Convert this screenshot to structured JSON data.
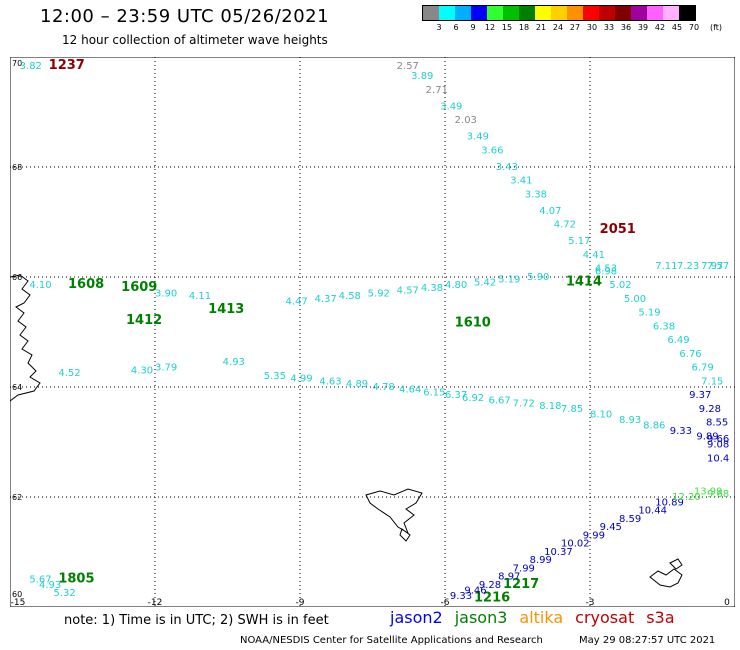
{
  "header": {
    "title": "12:00 – 23:59 UTC 05/26/2021",
    "subtitle": "12 hour collection of altimeter wave heights"
  },
  "legend": {
    "colors": [
      "#888888",
      "#00ffff",
      "#00b0ff",
      "#0000ff",
      "#30ff30",
      "#00c000",
      "#008000",
      "#ffff00",
      "#ffd000",
      "#ff9000",
      "#ff0000",
      "#c00000",
      "#800000",
      "#a000a0",
      "#ff60ff",
      "#ffb0ff",
      "#000000"
    ],
    "ticks": [
      "3",
      "6",
      "9",
      "12",
      "15",
      "18",
      "21",
      "24",
      "27",
      "30",
      "33",
      "36",
      "39",
      "42",
      "45",
      "70"
    ],
    "unit": "(ft)"
  },
  "map": {
    "lon_range": [
      -15,
      0
    ],
    "lat_range": [
      60,
      70
    ],
    "x_ticks": [
      "-15",
      "-12",
      "-9",
      "-6",
      "-3",
      "0"
    ],
    "y_ticks": [
      "60",
      "62",
      "64",
      "66",
      "68",
      "70"
    ],
    "grid": "dotted",
    "time_labels": [
      {
        "text": "1237",
        "lon": -14.2,
        "lat": 69.85,
        "color": "#8b0000"
      },
      {
        "text": "2051",
        "lon": -2.8,
        "lat": 66.8,
        "color": "#8b0000"
      },
      {
        "text": "1608",
        "lon": -13.8,
        "lat": 65.8,
        "color": "#008000"
      },
      {
        "text": "1609",
        "lon": -12.7,
        "lat": 65.75,
        "color": "#008000"
      },
      {
        "text": "1412",
        "lon": -12.6,
        "lat": 65.15,
        "color": "#008000"
      },
      {
        "text": "1413",
        "lon": -10.9,
        "lat": 65.35,
        "color": "#008000"
      },
      {
        "text": "1414",
        "lon": -3.5,
        "lat": 65.85,
        "color": "#008000"
      },
      {
        "text": "1610",
        "lon": -5.8,
        "lat": 65.1,
        "color": "#008000"
      },
      {
        "text": "1805",
        "lon": -14.0,
        "lat": 60.45,
        "color": "#008000"
      },
      {
        "text": "1217",
        "lon": -4.8,
        "lat": 60.35,
        "color": "#008000"
      },
      {
        "text": "1216",
        "lon": -5.4,
        "lat": 60.1,
        "color": "#008000"
      }
    ],
    "wave_values": [
      {
        "text": "3.82",
        "lon": -14.8,
        "lat": 69.85,
        "color": "#20d0d0"
      },
      {
        "text": "2.57",
        "lon": -7.0,
        "lat": 69.9,
        "color": "#888888"
      },
      {
        "text": "3.89",
        "lon": -6.7,
        "lat": 69.6,
        "color": "#20d0d0"
      },
      {
        "text": "2.71",
        "lon": -6.4,
        "lat": 69.35,
        "color": "#888888"
      },
      {
        "text": "3.49",
        "lon": -6.1,
        "lat": 69.05,
        "color": "#20d0d0"
      },
      {
        "text": "2.03",
        "lon": -5.8,
        "lat": 68.8,
        "color": "#888888"
      },
      {
        "text": "3.49",
        "lon": -5.55,
        "lat": 68.5,
        "color": "#20d0d0"
      },
      {
        "text": "3.66",
        "lon": -5.25,
        "lat": 68.25,
        "color": "#20d0d0"
      },
      {
        "text": "3.43",
        "lon": -4.95,
        "lat": 67.95,
        "color": "#20d0d0"
      },
      {
        "text": "3.41",
        "lon": -4.65,
        "lat": 67.7,
        "color": "#20d0d0"
      },
      {
        "text": "3.38",
        "lon": -4.35,
        "lat": 67.45,
        "color": "#20d0d0"
      },
      {
        "text": "4.07",
        "lon": -4.05,
        "lat": 67.15,
        "color": "#20d0d0"
      },
      {
        "text": "4.72",
        "lon": -3.75,
        "lat": 66.9,
        "color": "#20d0d0"
      },
      {
        "text": "5.17",
        "lon": -3.45,
        "lat": 66.6,
        "color": "#20d0d0"
      },
      {
        "text": "4.41",
        "lon": -3.15,
        "lat": 66.35,
        "color": "#20d0d0"
      },
      {
        "text": "4.53",
        "lon": -2.9,
        "lat": 66.1,
        "color": "#20d0d0"
      },
      {
        "text": "5.02",
        "lon": -2.6,
        "lat": 65.8,
        "color": "#20d0d0"
      },
      {
        "text": "5.00",
        "lon": -2.3,
        "lat": 65.55,
        "color": "#20d0d0"
      },
      {
        "text": "5.19",
        "lon": -2.0,
        "lat": 65.3,
        "color": "#20d0d0"
      },
      {
        "text": "6.38",
        "lon": -1.7,
        "lat": 65.05,
        "color": "#20d0d0"
      },
      {
        "text": "6.49",
        "lon": -1.4,
        "lat": 64.8,
        "color": "#20d0d0"
      },
      {
        "text": "6.76",
        "lon": -1.15,
        "lat": 64.55,
        "color": "#20d0d0"
      },
      {
        "text": "6.79",
        "lon": -0.9,
        "lat": 64.3,
        "color": "#20d0d0"
      },
      {
        "text": "7.15",
        "lon": -0.7,
        "lat": 64.05,
        "color": "#20d0d0"
      },
      {
        "text": "9.37",
        "lon": -0.95,
        "lat": 63.8,
        "color": "#0000c0"
      },
      {
        "text": "9.28",
        "lon": -0.75,
        "lat": 63.55,
        "color": "#0000c0"
      },
      {
        "text": "8.55",
        "lon": -0.6,
        "lat": 63.3,
        "color": "#0000c0"
      },
      {
        "text": "9.33",
        "lon": -1.35,
        "lat": 63.15,
        "color": "#0000c0"
      },
      {
        "text": "8.86",
        "lon": -1.9,
        "lat": 63.25,
        "color": "#20d0d0"
      },
      {
        "text": "8.93",
        "lon": -2.4,
        "lat": 63.35,
        "color": "#20d0d0"
      },
      {
        "text": "8.10",
        "lon": -3.0,
        "lat": 63.45,
        "color": "#20d0d0"
      },
      {
        "text": "7.85",
        "lon": -3.6,
        "lat": 63.55,
        "color": "#20d0d0"
      },
      {
        "text": "8.18",
        "lon": -4.05,
        "lat": 63.6,
        "color": "#20d0d0"
      },
      {
        "text": "7.72",
        "lon": -4.6,
        "lat": 63.65,
        "color": "#20d0d0"
      },
      {
        "text": "6.67",
        "lon": -5.1,
        "lat": 63.7,
        "color": "#20d0d0"
      },
      {
        "text": "6.92",
        "lon": -5.65,
        "lat": 63.75,
        "color": "#20d0d0"
      },
      {
        "text": "6.37",
        "lon": -6.0,
        "lat": 63.8,
        "color": "#20d0d0"
      },
      {
        "text": "6.15",
        "lon": -6.45,
        "lat": 63.85,
        "color": "#20d0d0"
      },
      {
        "text": "4.64",
        "lon": -6.95,
        "lat": 63.9,
        "color": "#20d0d0"
      },
      {
        "text": "4.78",
        "lon": -7.5,
        "lat": 63.95,
        "color": "#20d0d0"
      },
      {
        "text": "4.89",
        "lon": -8.05,
        "lat": 64.0,
        "color": "#20d0d0"
      },
      {
        "text": "4.63",
        "lon": -8.6,
        "lat": 64.05,
        "color": "#20d0d0"
      },
      {
        "text": "4.99",
        "lon": -9.2,
        "lat": 64.1,
        "color": "#20d0d0"
      },
      {
        "text": "5.35",
        "lon": -9.75,
        "lat": 64.15,
        "color": "#20d0d0"
      },
      {
        "text": "4.52",
        "lon": -14.0,
        "lat": 64.2,
        "color": "#20d0d0"
      },
      {
        "text": "4.30",
        "lon": -12.5,
        "lat": 64.25,
        "color": "#20d0d0"
      },
      {
        "text": "3.79",
        "lon": -12.0,
        "lat": 64.3,
        "color": "#20d0d0"
      },
      {
        "text": "4.93",
        "lon": -10.6,
        "lat": 64.4,
        "color": "#20d0d0"
      },
      {
        "text": "4.10",
        "lon": -14.6,
        "lat": 65.8,
        "color": "#20d0d0"
      },
      {
        "text": "3.90",
        "lon": -12.0,
        "lat": 65.65,
        "color": "#20d0d0"
      },
      {
        "text": "4.11",
        "lon": -11.3,
        "lat": 65.6,
        "color": "#20d0d0"
      },
      {
        "text": "4.47",
        "lon": -9.3,
        "lat": 65.5,
        "color": "#20d0d0"
      },
      {
        "text": "4.37",
        "lon": -8.7,
        "lat": 65.55,
        "color": "#20d0d0"
      },
      {
        "text": "4.58",
        "lon": -8.2,
        "lat": 65.6,
        "color": "#20d0d0"
      },
      {
        "text": "5.92",
        "lon": -7.6,
        "lat": 65.65,
        "color": "#20d0d0"
      },
      {
        "text": "4.57",
        "lon": -7.0,
        "lat": 65.7,
        "color": "#20d0d0"
      },
      {
        "text": "4.38",
        "lon": -6.5,
        "lat": 65.75,
        "color": "#20d0d0"
      },
      {
        "text": "4.80",
        "lon": -6.0,
        "lat": 65.8,
        "color": "#20d0d0"
      },
      {
        "text": "5.42",
        "lon": -5.4,
        "lat": 65.85,
        "color": "#20d0d0"
      },
      {
        "text": "5.19",
        "lon": -4.9,
        "lat": 65.9,
        "color": "#20d0d0"
      },
      {
        "text": "5.90",
        "lon": -4.3,
        "lat": 65.95,
        "color": "#20d0d0"
      },
      {
        "text": "6.98",
        "lon": -2.9,
        "lat": 66.05,
        "color": "#20d0d0"
      },
      {
        "text": "7.11",
        "lon": -1.65,
        "lat": 66.15,
        "color": "#20d0d0"
      },
      {
        "text": "7.23",
        "lon": -1.2,
        "lat": 66.15,
        "color": "#20d0d0"
      },
      {
        "text": "7.97",
        "lon": -0.7,
        "lat": 66.15,
        "color": "#20d0d0"
      },
      {
        "text": "7.57",
        "lon": -0.2,
        "lat": 66.15,
        "color": "#20d0d0"
      },
      {
        "text": "9.89",
        "lon": -0.8,
        "lat": 63.05,
        "color": "#0000c0"
      },
      {
        "text": "9.66",
        "lon": -0.4,
        "lat": 63.0,
        "color": "#0000c0"
      },
      {
        "text": "9.08",
        "lon": -0.25,
        "lat": 62.9,
        "color": "#0000c0"
      },
      {
        "text": "10.4",
        "lon": -0.2,
        "lat": 62.65,
        "color": "#0000c0"
      },
      {
        "text": "5.67",
        "lon": -14.6,
        "lat": 60.45,
        "color": "#20d0d0"
      },
      {
        "text": "4.93",
        "lon": -14.4,
        "lat": 60.35,
        "color": "#20d0d0"
      },
      {
        "text": "5.32",
        "lon": -14.1,
        "lat": 60.2,
        "color": "#20d0d0"
      },
      {
        "text": "9.33",
        "lon": -5.9,
        "lat": 60.15,
        "color": "#0000c0"
      },
      {
        "text": "9.46",
        "lon": -5.6,
        "lat": 60.25,
        "color": "#0000c0"
      },
      {
        "text": "9.28",
        "lon": -5.3,
        "lat": 60.35,
        "color": "#0000c0"
      },
      {
        "text": "8.97",
        "lon": -4.9,
        "lat": 60.5,
        "color": "#0000c0"
      },
      {
        "text": "7.99",
        "lon": -4.6,
        "lat": 60.65,
        "color": "#0000c0"
      },
      {
        "text": "8.99",
        "lon": -4.25,
        "lat": 60.8,
        "color": "#0000c0"
      },
      {
        "text": "10.37",
        "lon": -3.95,
        "lat": 60.95,
        "color": "#0000c0"
      },
      {
        "text": "10.02",
        "lon": -3.6,
        "lat": 61.1,
        "color": "#0000c0"
      },
      {
        "text": "9.99",
        "lon": -3.15,
        "lat": 61.25,
        "color": "#0000c0"
      },
      {
        "text": "9.45",
        "lon": -2.8,
        "lat": 61.4,
        "color": "#0000c0"
      },
      {
        "text": "8.59",
        "lon": -2.4,
        "lat": 61.55,
        "color": "#0000c0"
      },
      {
        "text": "10.44",
        "lon": -2.0,
        "lat": 61.7,
        "color": "#0000c0"
      },
      {
        "text": "10.89",
        "lon": -1.65,
        "lat": 61.85,
        "color": "#0000c0"
      },
      {
        "text": "12.20",
        "lon": -1.3,
        "lat": 61.95,
        "color": "#40e040"
      },
      {
        "text": "13.99",
        "lon": -0.85,
        "lat": 62.05,
        "color": "#40e040"
      },
      {
        "text": "9.68",
        "lon": -0.2,
        "lat": 62.0,
        "color": "#40e040"
      }
    ]
  },
  "footer": {
    "note": "note:  1) Time is in UTC;  2) SWH is in feet",
    "satellites": [
      {
        "name": "jason2",
        "color": "#0000ff"
      },
      {
        "name": "jason3",
        "color": "#008000"
      },
      {
        "name": "altika",
        "color": "#ff9000"
      },
      {
        "name": "cryosat",
        "color": "#c00000"
      },
      {
        "name": "s3a",
        "color": "#c00000"
      }
    ],
    "credit": "NOAA/NESDIS Center for Satellite Applications and Research",
    "timestamp": "May 29 08:27:57 UTC 2021"
  }
}
